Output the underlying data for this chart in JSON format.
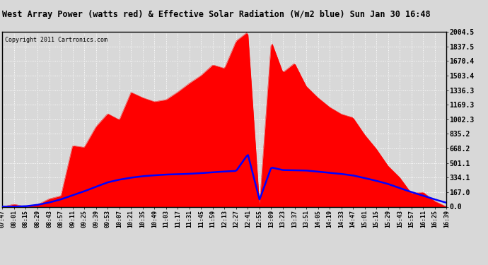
{
  "title": "West Array Power (watts red) & Effective Solar Radiation (W/m2 blue) Sun Jan 30 16:48",
  "copyright": "Copyright 2011 Cartronics.com",
  "yticks": [
    0.0,
    167.0,
    334.1,
    501.1,
    668.2,
    835.2,
    1002.3,
    1169.3,
    1336.3,
    1503.4,
    1670.4,
    1837.5,
    2004.5
  ],
  "ymax": 2004.5,
  "ymin": 0.0,
  "red_color": "#ff0000",
  "blue_color": "#0000ff",
  "grid_color": "#c8c8c8",
  "title_bg": "#d8d8d8",
  "plot_bg": "#d8d8d8",
  "border_color": "#000000",
  "xtick_labels": [
    "07:47",
    "08:01",
    "08:15",
    "08:29",
    "08:43",
    "08:57",
    "09:11",
    "09:25",
    "09:39",
    "09:53",
    "10:07",
    "10:21",
    "10:35",
    "10:49",
    "11:03",
    "11:17",
    "11:31",
    "11:45",
    "11:59",
    "12:13",
    "12:27",
    "12:41",
    "12:55",
    "13:09",
    "13:23",
    "13:37",
    "13:51",
    "14:05",
    "14:19",
    "14:33",
    "14:47",
    "15:01",
    "15:15",
    "15:29",
    "15:43",
    "15:57",
    "16:11",
    "16:25",
    "16:39"
  ],
  "n_points": 39
}
